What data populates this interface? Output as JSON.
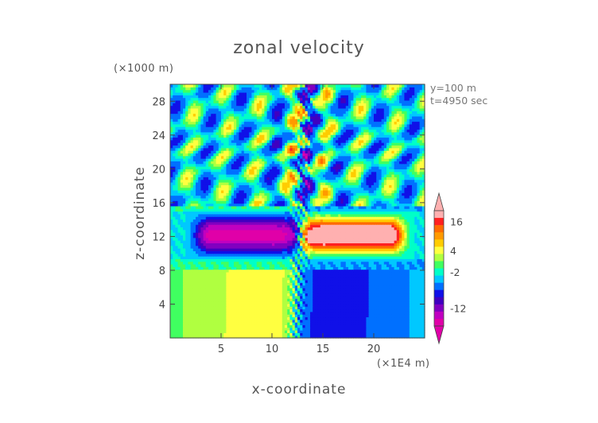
{
  "chart_data": {
    "type": "heatmap",
    "title": "zonal velocity",
    "xlabel": "x-coordinate",
    "ylabel": "z-coordinate",
    "x_units": "(×1E4 m)",
    "y_units": "(×1000 m)",
    "xlim": [
      0,
      25
    ],
    "ylim": [
      0,
      30
    ],
    "x_ticks": [
      "5",
      "10",
      "15",
      "20"
    ],
    "y_ticks": [
      "4",
      "8",
      "12",
      "16",
      "20",
      "24",
      "28"
    ],
    "annotations": [
      "y=100 m",
      "t=4950 sec"
    ],
    "colorbar": {
      "labels": [
        "16",
        "4",
        "-2",
        "-12"
      ],
      "colors": [
        "#ffb0b0",
        "#ff2020",
        "#ff6a00",
        "#ff9a00",
        "#ffcc00",
        "#ffff40",
        "#b0ff40",
        "#40ff60",
        "#00ffc8",
        "#00c8ff",
        "#0070ff",
        "#1010e8",
        "#4000c0",
        "#8000c0",
        "#c000c0",
        "#e000a8"
      ],
      "extend": "both"
    },
    "description_of_field": "Below z≈8: positive (yellow/orange) left of x≈12.5, negative (blue) right; 8–15: strong negative (magenta) jet on the left and strong positive (pink) on the right; above 15: alternating wave cells."
  }
}
